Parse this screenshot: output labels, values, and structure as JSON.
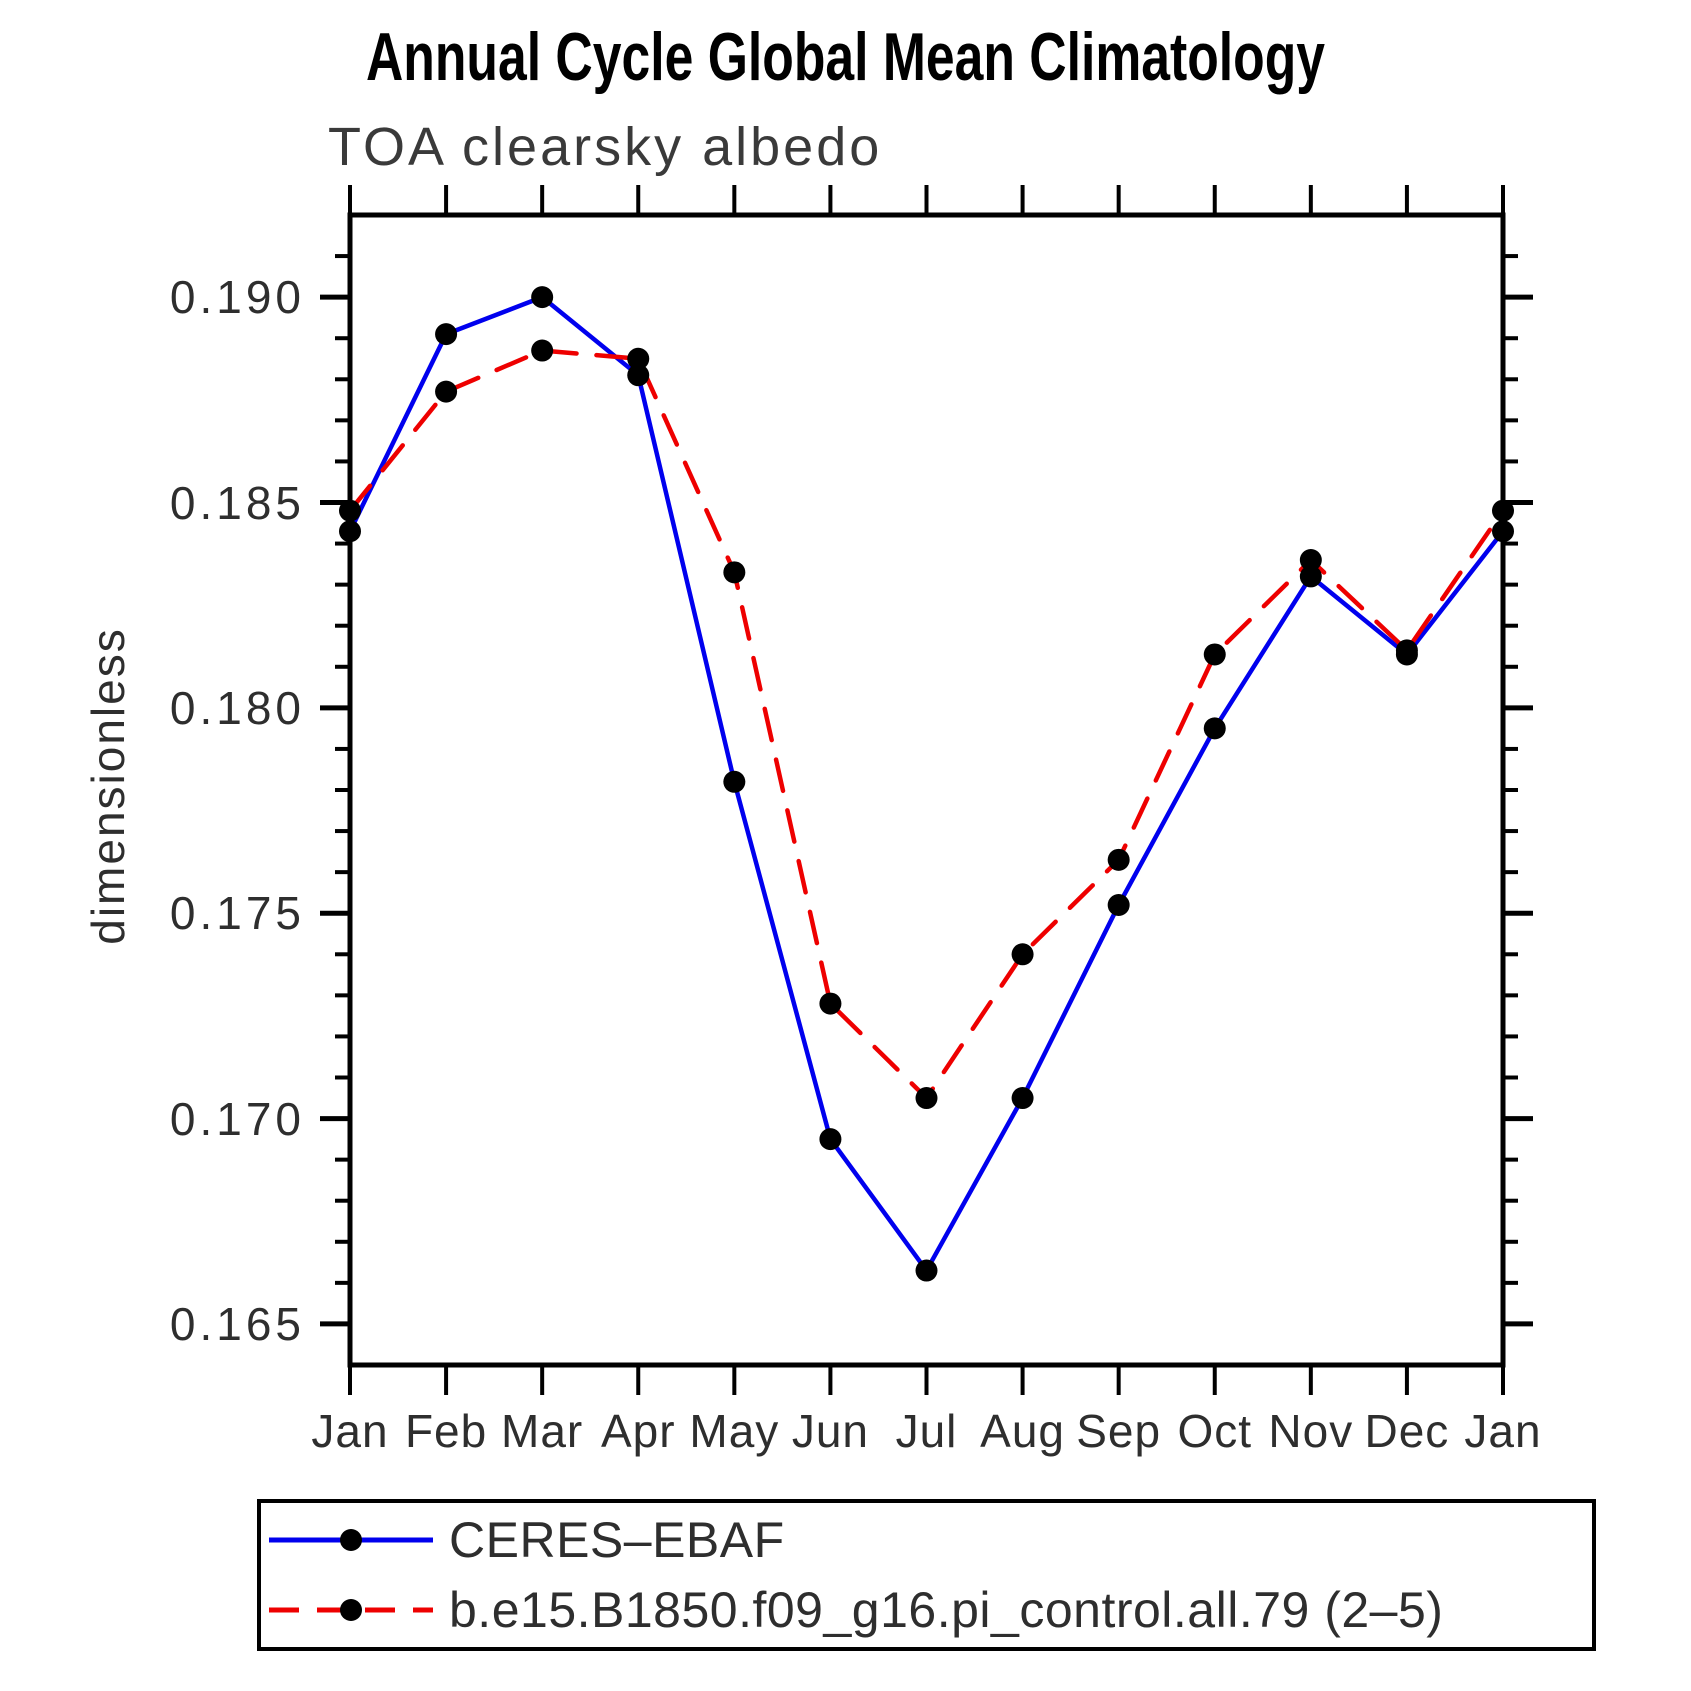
{
  "title": "Annual Cycle Global Mean Climatology",
  "subtitle": "TOA clearsky albedo",
  "y_axis": {
    "title": "dimensionless",
    "min": 0.164,
    "max": 0.192,
    "major_tick_labels": [
      "0.165",
      "0.170",
      "0.175",
      "0.180",
      "0.185",
      "0.190"
    ],
    "major_tick_values": [
      0.165,
      0.17,
      0.175,
      0.18,
      0.185,
      0.19
    ],
    "minor_tick_step": 0.001
  },
  "x_axis": {
    "labels": [
      "Jan",
      "Feb",
      "Mar",
      "Apr",
      "May",
      "Jun",
      "Jul",
      "Aug",
      "Sep",
      "Oct",
      "Nov",
      "Dec",
      "Jan"
    ]
  },
  "legend": [
    {
      "label": "CERES–EBAF",
      "color": "#0000ee",
      "line_style": "solid",
      "marker": "filled-circle"
    },
    {
      "label": "b.e15.B1850.f09_g16.pi_control.all.79 (2–5)",
      "color": "#ee0000",
      "line_style": "dashed",
      "marker": "filled-circle"
    }
  ],
  "colors": {
    "obs_line": "#0000ee",
    "model_line": "#ee0000",
    "marker": "#000000",
    "axis": "#000000",
    "text": "#2e2e2e"
  },
  "chart_data": {
    "type": "line",
    "title": "Annual Cycle Global Mean Climatology",
    "subtitle": "TOA clearsky albedo",
    "xlabel": "",
    "ylabel": "dimensionless",
    "x": [
      "Jan",
      "Feb",
      "Mar",
      "Apr",
      "May",
      "Jun",
      "Jul",
      "Aug",
      "Sep",
      "Oct",
      "Nov",
      "Dec",
      "Jan"
    ],
    "series": [
      {
        "name": "CERES–EBAF",
        "color": "#0000ee",
        "line_style": "solid",
        "marker": "filled-circle",
        "values": [
          0.1843,
          0.1891,
          0.19,
          0.1881,
          0.1782,
          0.1695,
          0.1663,
          0.1705,
          0.1752,
          0.1795,
          0.1832,
          0.1813,
          0.1843
        ]
      },
      {
        "name": "b.e15.B1850.f09_g16.pi_control.all.79 (2–5)",
        "color": "#ee0000",
        "line_style": "dashed",
        "marker": "filled-circle",
        "values": [
          0.1848,
          0.1877,
          0.1887,
          0.1885,
          0.1833,
          0.1728,
          0.1705,
          0.174,
          0.1763,
          0.1813,
          0.1836,
          0.1814,
          0.1848
        ]
      }
    ],
    "ylim": [
      0.164,
      0.192
    ],
    "grid": false,
    "legend_position": "bottom"
  }
}
